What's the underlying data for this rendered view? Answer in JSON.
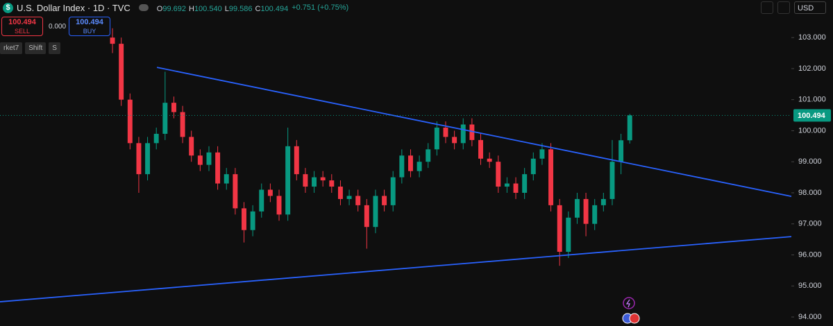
{
  "header": {
    "icon": "$",
    "title": "U.S. Dollar Index · 1D · TVC",
    "ohlc": [
      {
        "key": "O",
        "value": "99.692"
      },
      {
        "key": "H",
        "value": "100.540"
      },
      {
        "key": "L",
        "value": "99.586"
      },
      {
        "key": "C",
        "value": "100.494"
      }
    ],
    "change": "+0.751 (+0.75%)"
  },
  "trade": {
    "sell_price": "100.494",
    "sell_label": "SELL",
    "spread": "0.000",
    "buy_price": "100.494",
    "buy_label": "BUY"
  },
  "toolbar": [
    "rket7",
    "Shift",
    "S"
  ],
  "currency": "USD",
  "chart_data": {
    "type": "candlestick",
    "open": [
      103.0,
      102.8,
      101.0,
      99.6,
      98.6,
      99.6,
      99.9,
      100.9,
      100.6,
      99.8,
      99.2,
      98.9,
      99.3,
      98.3,
      98.6,
      97.5,
      96.8,
      97.4,
      98.1,
      97.9,
      97.3,
      99.5,
      98.6,
      98.2,
      98.5,
      98.4,
      98.2,
      97.8,
      97.9,
      97.6,
      96.9,
      97.9,
      97.6,
      98.5,
      99.2,
      98.7,
      99.0,
      99.4,
      100.1,
      99.8,
      99.6,
      100.2,
      99.7,
      99.1,
      99.0,
      98.2,
      98.3,
      98.0,
      98.6,
      99.1,
      99.4,
      97.6,
      96.1,
      97.2,
      97.8,
      97.0,
      97.6,
      97.8,
      99.0,
      99.692
    ],
    "high": [
      103.3,
      103.0,
      101.2,
      99.8,
      99.8,
      100.1,
      101.9,
      101.1,
      100.8,
      100.0,
      99.4,
      99.5,
      99.5,
      98.8,
      98.8,
      97.7,
      97.6,
      98.3,
      98.3,
      98.1,
      100.1,
      99.7,
      98.8,
      98.7,
      98.7,
      98.6,
      98.4,
      98.1,
      98.1,
      97.8,
      98.1,
      98.1,
      98.7,
      99.4,
      99.4,
      99.2,
      99.6,
      100.3,
      100.3,
      100.0,
      100.4,
      100.4,
      99.9,
      99.3,
      99.2,
      98.5,
      98.5,
      98.8,
      99.3,
      99.6,
      99.6,
      97.8,
      97.4,
      98.0,
      98.0,
      97.8,
      98.0,
      99.7,
      99.9,
      100.54
    ],
    "low": [
      102.5,
      100.8,
      99.4,
      98.0,
      98.4,
      99.4,
      99.7,
      100.4,
      99.6,
      99.0,
      98.7,
      98.7,
      98.1,
      98.1,
      97.3,
      96.4,
      96.6,
      97.2,
      97.7,
      97.1,
      97.1,
      98.4,
      98.0,
      98.0,
      98.2,
      98.0,
      97.6,
      97.6,
      97.4,
      96.2,
      96.7,
      97.4,
      97.4,
      98.3,
      98.5,
      98.5,
      98.8,
      99.2,
      99.6,
      99.4,
      99.4,
      99.5,
      98.9,
      98.8,
      98.0,
      98.0,
      97.8,
      97.8,
      98.4,
      98.9,
      97.4,
      95.65,
      95.9,
      97.0,
      96.6,
      96.8,
      97.4,
      97.6,
      98.6,
      99.586
    ],
    "close": [
      102.8,
      101.0,
      99.6,
      98.6,
      99.6,
      99.9,
      100.9,
      100.6,
      99.8,
      99.2,
      98.9,
      99.3,
      98.3,
      98.6,
      97.5,
      96.8,
      97.4,
      98.1,
      97.9,
      97.3,
      99.5,
      98.6,
      98.2,
      98.5,
      98.4,
      98.2,
      97.8,
      97.9,
      97.6,
      96.9,
      97.9,
      97.6,
      98.5,
      99.2,
      98.7,
      99.0,
      99.4,
      100.1,
      99.8,
      99.6,
      100.2,
      99.7,
      99.1,
      99.0,
      98.2,
      98.3,
      98.0,
      98.6,
      99.1,
      99.4,
      97.6,
      96.1,
      97.2,
      97.8,
      97.0,
      97.6,
      97.8,
      99.0,
      99.692,
      100.494
    ],
    "up_color": "#089981",
    "down_color": "#f23645",
    "xlim": [
      -12.83,
      77.43
    ],
    "ylim": [
      93.71,
      104.21
    ],
    "yticks": [
      {
        "value": 94,
        "label": "94.000"
      },
      {
        "value": 95,
        "label": "95.000"
      },
      {
        "value": 96,
        "label": "96.000"
      },
      {
        "value": 97,
        "label": "97.000"
      },
      {
        "value": 98,
        "label": "98.000"
      },
      {
        "value": 99,
        "label": "99.000"
      },
      {
        "value": 100,
        "label": "100.000"
      },
      {
        "value": 101,
        "label": "101.000"
      },
      {
        "value": 102,
        "label": "102.000"
      },
      {
        "value": 103,
        "label": "103.000"
      }
    ],
    "grid": false,
    "last_price": {
      "value": 100.494,
      "label": "100.494"
    },
    "trend_lines": [
      {
        "x": [
          5.07,
          77.43
        ],
        "y": [
          102.04,
          97.886
        ],
        "color": "#2962ff"
      },
      {
        "x": [
          -12.83,
          77.43
        ],
        "y": [
          94.49,
          96.59
        ],
        "color": "#2962ff"
      }
    ]
  }
}
